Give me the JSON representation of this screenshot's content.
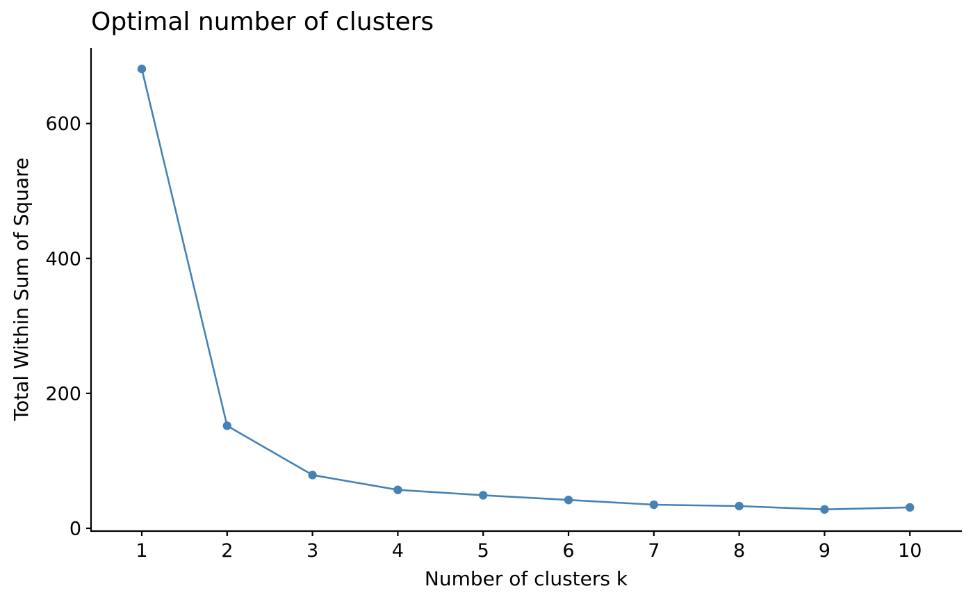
{
  "chart_data": {
    "type": "line",
    "title": "Optimal number of clusters",
    "xlabel": "Number of clusters k",
    "ylabel": "Total Within Sum of Square",
    "categories": [
      "1",
      "2",
      "3",
      "4",
      "5",
      "6",
      "7",
      "8",
      "9",
      "10"
    ],
    "series": [
      {
        "values": [
          681,
          152,
          79,
          57,
          49,
          42,
          35,
          33,
          28,
          31
        ]
      }
    ],
    "y_ticks": [
      0,
      200,
      400,
      600
    ],
    "ylim": [
      0,
      700
    ],
    "grid": false,
    "legend": "none",
    "colors": {
      "series": "#4682B4",
      "axis": "#000000"
    }
  }
}
